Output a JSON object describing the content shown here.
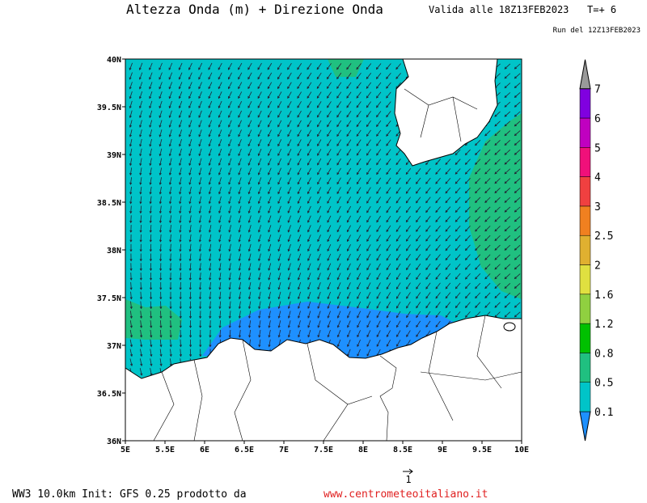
{
  "header": {
    "title": "Altezza Onda (m) + Direzione Onda",
    "valid": "Valida alle 18Z13FEB2023",
    "step": "T=+ 6",
    "run": "Run del 12Z13FEB2023"
  },
  "map": {
    "lon_labels": [
      "5E",
      "5.5E",
      "6E",
      "6.5E",
      "7E",
      "7.5E",
      "8E",
      "8.5E",
      "9E",
      "9.5E",
      "10E"
    ],
    "lat_labels": [
      "36N",
      "36.5N",
      "37N",
      "37.5N",
      "38N",
      "38.5N",
      "39N",
      "39.5N",
      "40N"
    ]
  },
  "colorbar": {
    "labels": [
      0.1,
      0.5,
      0.8,
      1.2,
      1.6,
      2,
      2.5,
      3,
      4,
      5,
      6,
      7
    ]
  },
  "vector_reference": {
    "label": "1"
  },
  "footer": {
    "model": "WW3 10.0km Init: GFS 0.25 prodotto da",
    "site": "www.centrometeoitaliano.it"
  }
}
